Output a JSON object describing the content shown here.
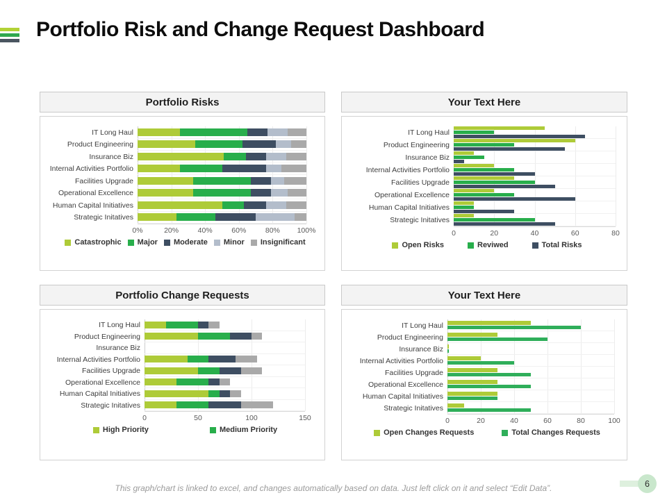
{
  "slide": {
    "title": "Portfolio Risk and Change Request Dashboard",
    "footer_note": "This graph/chart is linked to excel, and changes automatically based on data. Just left click on it and select “Edit Data”.",
    "page_number": "6"
  },
  "accents": {
    "yellow_green": "#aecb38",
    "green": "#28ae4b",
    "dark_slate": "#3e4e62",
    "light_gray_blue": "#b3bdcb",
    "gray": "#a9a9a9",
    "badge_circle": "#c9e7cc",
    "badge_tab": "#def0de"
  },
  "logo_stripes": [
    "#b2d235",
    "#2fa84d",
    "#4a5560"
  ],
  "chart_data": [
    {
      "type": "bar",
      "subtype": "stacked-horizontal",
      "title": "Portfolio Risks",
      "categories": [
        "IT Long Haul",
        "Product Engineering",
        "Insurance Biz",
        "Internal Activities Portfolio",
        "Facilities Upgrade",
        "Operational Excellence",
        "Human Capital Initiatives",
        "Strategic Initatives"
      ],
      "series": [
        {
          "name": "Catastrophic",
          "color": "#aecb38",
          "values": [
            25,
            34,
            51,
            25,
            33,
            33,
            50,
            23
          ]
        },
        {
          "name": "Major",
          "color": "#28ae4b",
          "values": [
            40,
            28,
            13,
            25,
            34,
            34,
            13,
            23
          ]
        },
        {
          "name": "Moderate",
          "color": "#3e4e62",
          "values": [
            12,
            20,
            12,
            26,
            12,
            12,
            13,
            24
          ]
        },
        {
          "name": "Minor",
          "color": "#b3bdcb",
          "values": [
            12,
            9,
            12,
            9,
            8,
            10,
            12,
            23
          ]
        },
        {
          "name": "Insignificant",
          "color": "#a9a9a9",
          "values": [
            11,
            9,
            12,
            15,
            13,
            11,
            12,
            7
          ]
        }
      ],
      "axis": {
        "ticks": [
          "0%",
          "20%",
          "40%",
          "60%",
          "80%",
          "100%"
        ],
        "max": 100
      },
      "legend": [
        {
          "label": "Catastrophic",
          "color": "#aecb38"
        },
        {
          "label": "Major",
          "color": "#28ae4b"
        },
        {
          "label": "Moderate",
          "color": "#3e4e62"
        },
        {
          "label": "Minor",
          "color": "#b3bdcb"
        },
        {
          "label": "Insignificant",
          "color": "#a9a9a9"
        }
      ]
    },
    {
      "type": "bar",
      "subtype": "grouped-horizontal",
      "title": "Your Text Here",
      "categories": [
        "IT Long Haul",
        "Product Engineering",
        "Insurance Biz",
        "Internal Activities Portfolio",
        "Facilities Upgrade",
        "Operational Excellence",
        "Human Capital Initiatives",
        "Strategic Initatives"
      ],
      "series": [
        {
          "name": "Open Risks",
          "color": "#aecb38",
          "values": [
            45,
            60,
            10,
            20,
            30,
            20,
            10,
            10
          ]
        },
        {
          "name": "Reviwed",
          "color": "#28ae4b",
          "values": [
            20,
            30,
            15,
            30,
            40,
            30,
            10,
            40
          ]
        },
        {
          "name": "Total Risks",
          "color": "#3e4e62",
          "values": [
            65,
            55,
            5,
            40,
            50,
            60,
            30,
            50
          ]
        }
      ],
      "axis": {
        "ticks": [
          "0",
          "20",
          "40",
          "60",
          "80"
        ],
        "max": 80
      },
      "legend": [
        {
          "label": "Open Risks",
          "color": "#aecb38"
        },
        {
          "label": "Reviwed",
          "color": "#28ae4b"
        },
        {
          "label": "Total Risks",
          "color": "#3e4e62"
        }
      ]
    },
    {
      "type": "bar",
      "subtype": "stacked-horizontal",
      "title": "Portfolio Change Requests",
      "categories": [
        "IT Long Haul",
        "Product Engineering",
        "Insurance Biz",
        "Internal Activities Portfolio",
        "Facilities Upgrade",
        "Operational Excellence",
        "Human Capital Initiatives",
        "Strategic Initatives"
      ],
      "series": [
        {
          "name": "High Priority",
          "color": "#aecb38",
          "values": [
            20,
            50,
            0,
            40,
            50,
            30,
            60,
            30
          ]
        },
        {
          "name": "Medium Priority",
          "color": "#28ae4b",
          "values": [
            30,
            30,
            0,
            20,
            20,
            30,
            10,
            30
          ]
        },
        {
          "name": "",
          "color": "#3e4e62",
          "values": [
            10,
            20,
            0,
            25,
            20,
            10,
            10,
            30
          ]
        },
        {
          "name": "",
          "color": "#a9a9a9",
          "values": [
            10,
            10,
            0,
            20,
            20,
            10,
            10,
            30
          ]
        }
      ],
      "axis": {
        "ticks": [
          "0",
          "50",
          "100",
          "150"
        ],
        "max": 150
      },
      "legend": [
        {
          "label": "High Priority",
          "color": "#aecb38"
        },
        {
          "label": "Medium Priority",
          "color": "#28ae4b"
        }
      ]
    },
    {
      "type": "bar",
      "subtype": "grouped-horizontal",
      "title": "Your Text Here",
      "categories": [
        "IT Long Haul",
        "Product Engineering",
        "Insurance Biz",
        "Internal Activities Portfolio",
        "Facilities Upgrade",
        "Operational Excellence",
        "Human Capital Initiatives",
        "Strategic Initatives"
      ],
      "series": [
        {
          "name": "Open Changes Requests",
          "color": "#aecb38",
          "values": [
            50,
            30,
            1,
            20,
            30,
            30,
            30,
            10
          ]
        },
        {
          "name": "Total Changes Requests",
          "color": "#2fae5a",
          "values": [
            80,
            60,
            1,
            40,
            50,
            50,
            30,
            50
          ]
        }
      ],
      "axis": {
        "ticks": [
          "0",
          "20",
          "40",
          "60",
          "80",
          "100"
        ],
        "max": 100
      },
      "legend": [
        {
          "label": "Open Changes Requests",
          "color": "#aecb38"
        },
        {
          "label": "Total Changes Requests",
          "color": "#2fae5a"
        }
      ]
    }
  ]
}
